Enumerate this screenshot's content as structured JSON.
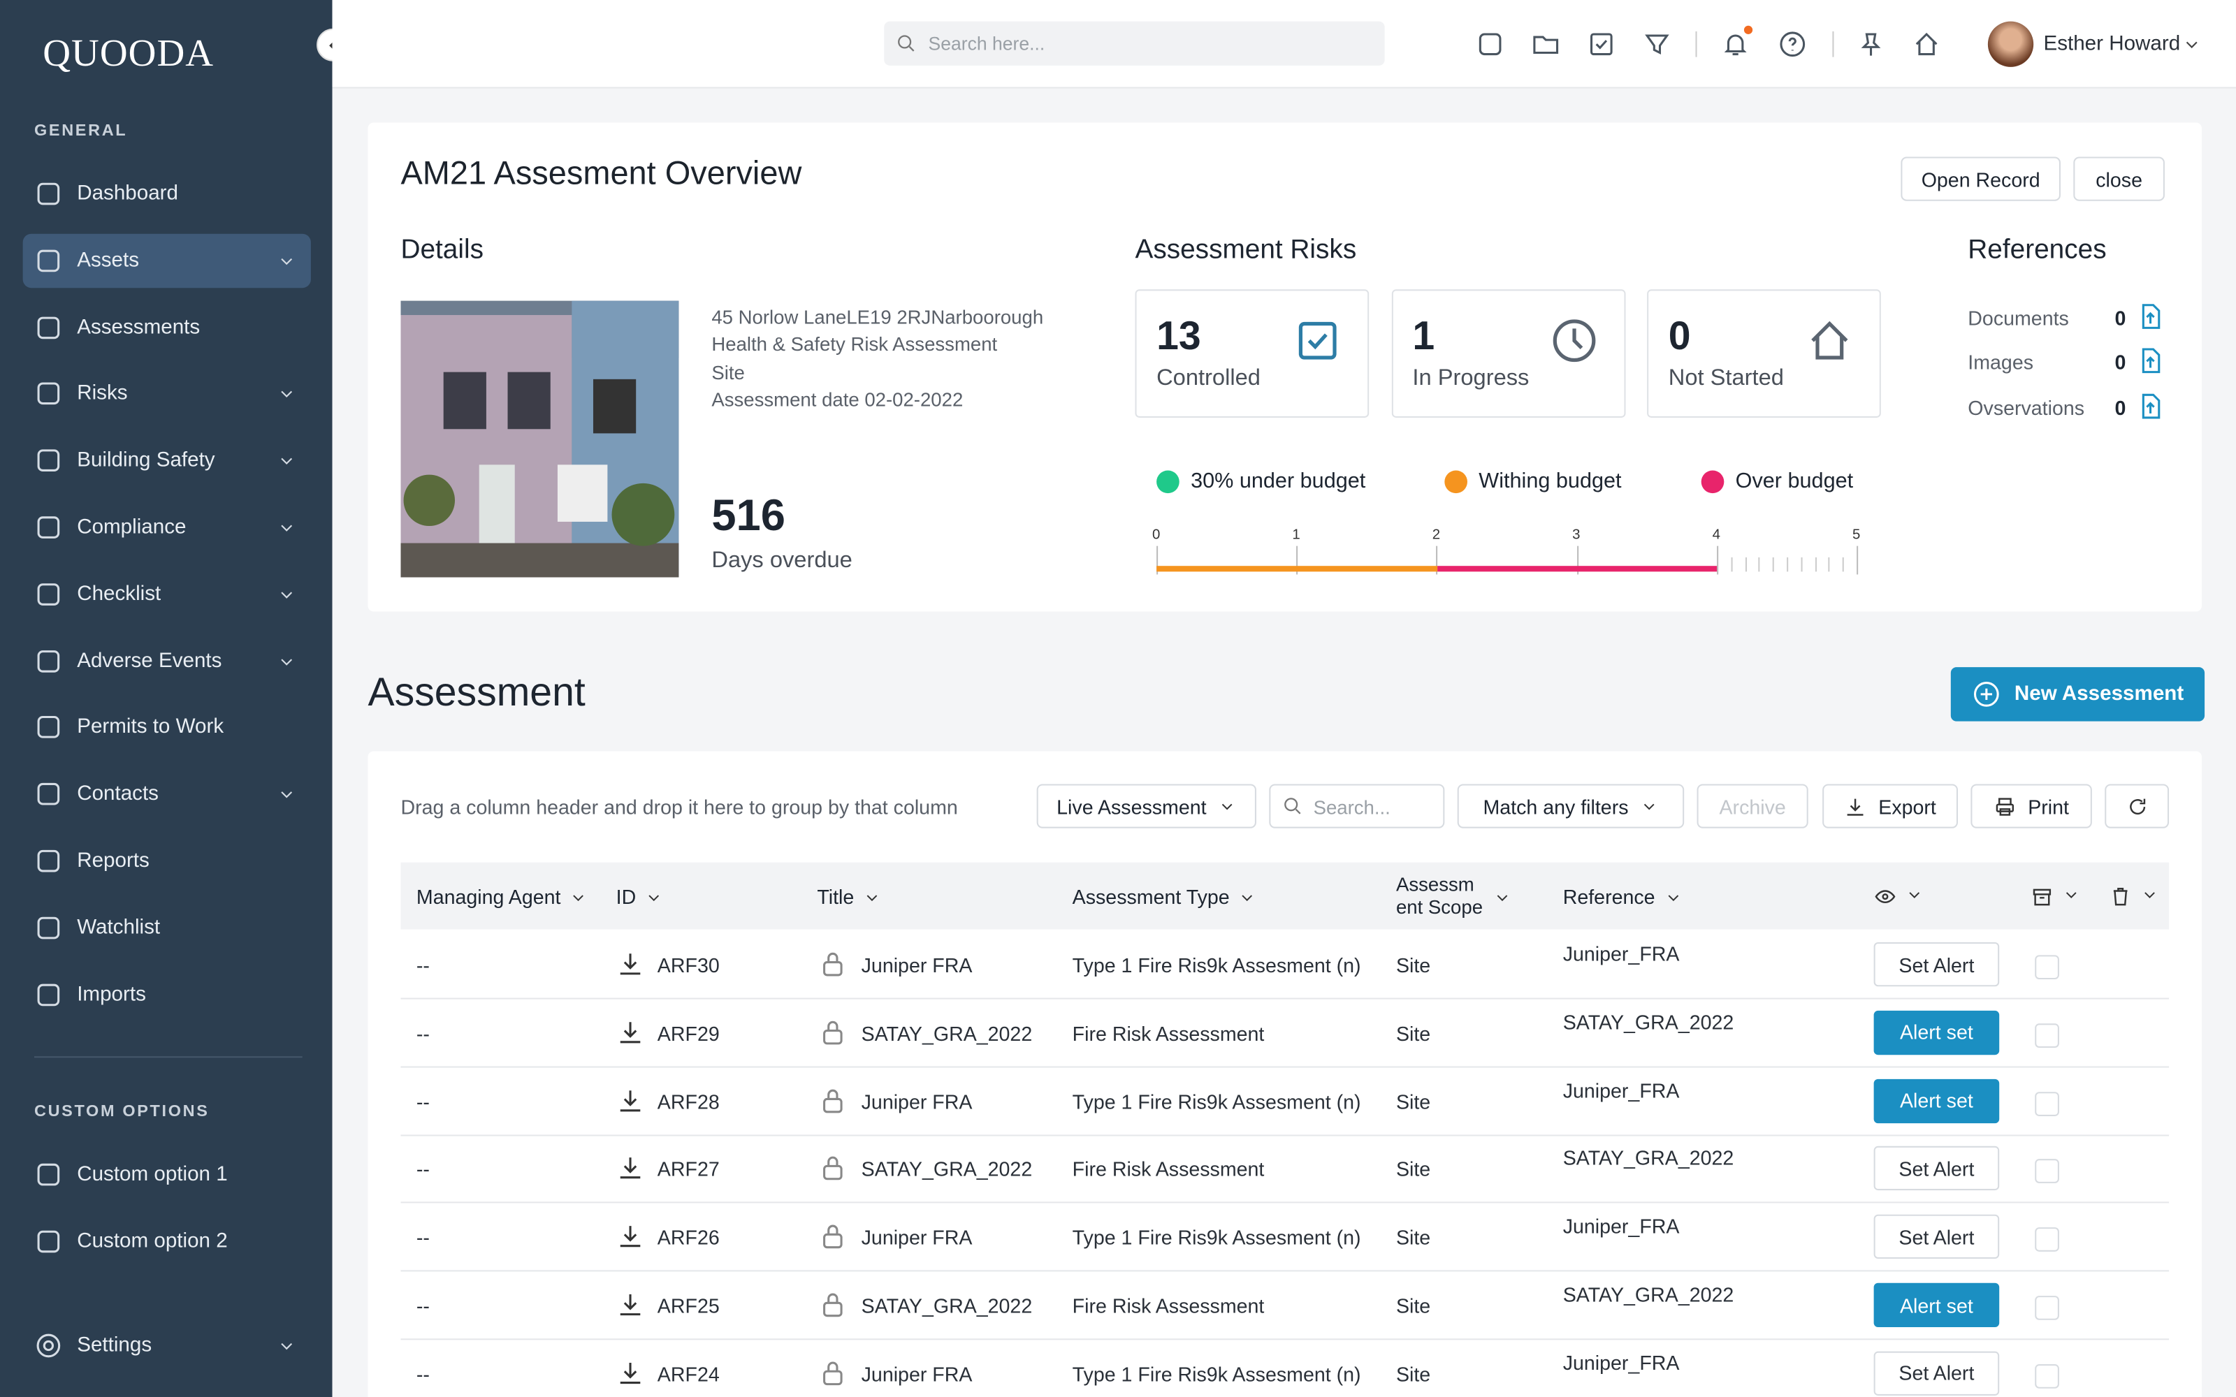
{
  "brand": "QUOODA",
  "sidebar": {
    "general_label": "GENERAL",
    "items": [
      {
        "label": "Dashboard",
        "expandable": false
      },
      {
        "label": "Assets",
        "expandable": true
      },
      {
        "label": "Assessments",
        "expandable": false
      },
      {
        "label": "Risks",
        "expandable": true
      },
      {
        "label": "Building Safety",
        "expandable": true
      },
      {
        "label": "Compliance",
        "expandable": true
      },
      {
        "label": "Checklist",
        "expandable": true
      },
      {
        "label": "Adverse Events",
        "expandable": true
      },
      {
        "label": "Permits to Work",
        "expandable": false
      },
      {
        "label": "Contacts",
        "expandable": true
      },
      {
        "label": "Reports",
        "expandable": false
      },
      {
        "label": "Watchlist",
        "expandable": false
      },
      {
        "label": "Imports",
        "expandable": false
      }
    ],
    "custom_label": "CUSTOM OPTIONS",
    "custom_items": [
      "Custom option 1",
      "Custom option 2"
    ],
    "settings": "Settings"
  },
  "topbar": {
    "search_placeholder": "Search here...",
    "user": "Esther Howard"
  },
  "overview": {
    "title": "AM21 Assesment Overview",
    "buttons": [
      "Open Record",
      "close"
    ],
    "details": {
      "heading": "Details",
      "lines": [
        "45 Norlow LaneLE19 2RJNarboorough",
        "Health & Safety Risk Assessment",
        "Site",
        "Assessment date 02-02-2022"
      ],
      "days": "516",
      "days_label": "Days overdue"
    },
    "risks": {
      "heading": "Assessment Risks",
      "cards": [
        {
          "count": "13",
          "label": "Controlled"
        },
        {
          "count": "1",
          "label": "In Progress"
        },
        {
          "count": "0",
          "label": "Not Started"
        }
      ],
      "legend": [
        {
          "label": "30% under budget",
          "color": "#1fc98a"
        },
        {
          "label": "Withing budget",
          "color": "#f5941f"
        },
        {
          "label": "Over budget",
          "color": "#e8246b"
        }
      ],
      "scale_ticks": [
        "0",
        "1",
        "2",
        "3",
        "4",
        "5"
      ]
    },
    "references": {
      "heading": "References",
      "items": [
        {
          "label": "Documents",
          "count": "0"
        },
        {
          "label": "Images",
          "count": "0"
        },
        {
          "label": "Ovservations",
          "count": "0"
        }
      ]
    }
  },
  "assessment": {
    "title": "Assessment",
    "new_button": "New Assessment",
    "group_hint": "Drag a column header and drop it here to group by that column",
    "toolbar": {
      "filter": "Live Assessment",
      "search": "Search...",
      "match": "Match any filters",
      "archive": "Archive",
      "export": "Export",
      "print": "Print"
    },
    "columns": [
      "Managing Agent",
      "ID",
      "Title",
      "Assessment Type",
      "Assessment Scope",
      "Reference"
    ],
    "rows": [
      {
        "agent": "--",
        "id": "ARF30",
        "title": "Juniper FRA",
        "type": "Type 1 Fire Ris9k Assesment (n)",
        "scope": "Site",
        "reference": "Juniper_FRA",
        "alert": {
          "label": "Set Alert",
          "active": false
        }
      },
      {
        "agent": "--",
        "id": "ARF29",
        "title": "SATAY_GRA_2022",
        "type": "Fire Risk Assessment",
        "scope": "Site",
        "reference": "SATAY_GRA_2022",
        "alert": {
          "label": "Alert set",
          "active": true
        }
      },
      {
        "agent": "--",
        "id": "ARF28",
        "title": "Juniper FRA",
        "type": "Type 1 Fire Ris9k Assesment (n)",
        "scope": "Site",
        "reference": "Juniper_FRA",
        "alert": {
          "label": "Alert set",
          "active": true
        }
      },
      {
        "agent": "--",
        "id": "ARF27",
        "title": "SATAY_GRA_2022",
        "type": "Fire Risk Assessment",
        "scope": "Site",
        "reference": "SATAY_GRA_2022",
        "alert": {
          "label": "Set Alert",
          "active": false
        }
      },
      {
        "agent": "--",
        "id": "ARF26",
        "title": "Juniper FRA",
        "type": "Type 1 Fire Ris9k Assesment (n)",
        "scope": "Site",
        "reference": "Juniper_FRA",
        "alert": {
          "label": "Set Alert",
          "active": false
        }
      },
      {
        "agent": "--",
        "id": "ARF25",
        "title": "SATAY_GRA_2022",
        "type": "Fire Risk Assessment",
        "scope": "Site",
        "reference": "SATAY_GRA_2022",
        "alert": {
          "label": "Alert set",
          "active": true
        }
      },
      {
        "agent": "--",
        "id": "ARF24",
        "title": "Juniper FRA",
        "type": "Type 1 Fire Ris9k Assesment (n)",
        "scope": "Site",
        "reference": "Juniper_FRA",
        "alert": {
          "label": "Set Alert",
          "active": false
        }
      }
    ]
  }
}
